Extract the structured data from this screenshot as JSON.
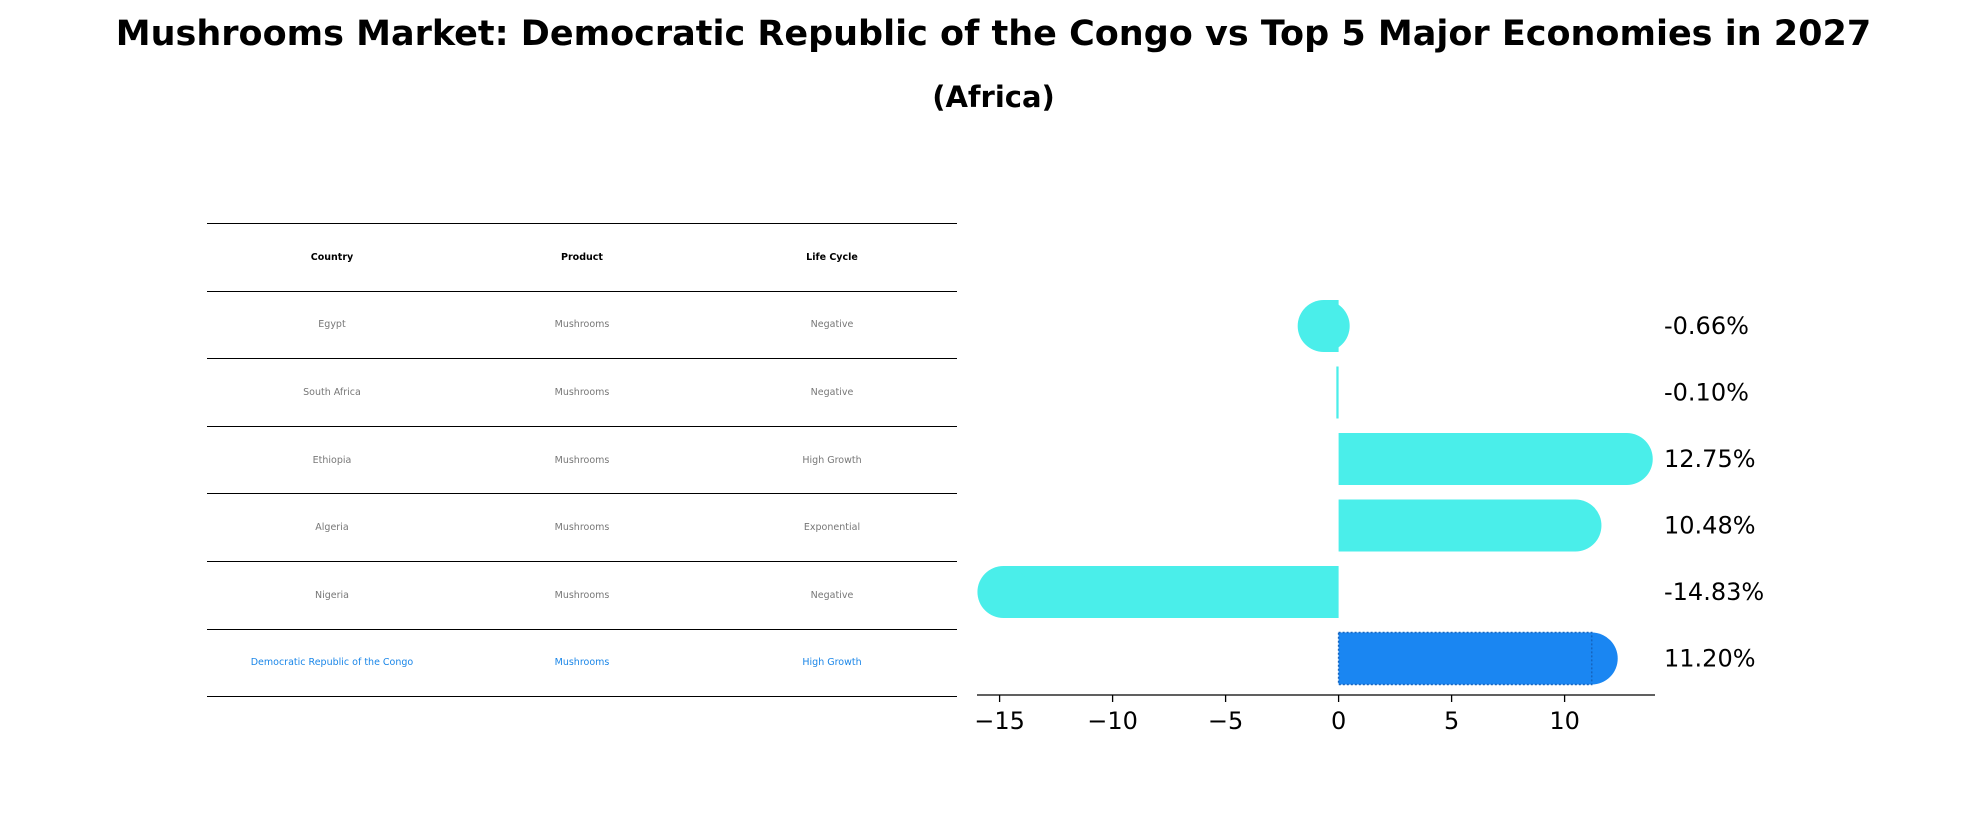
{
  "title": "Mushrooms Market: Democratic Republic of the Congo vs Top 5 Major Economies in 2027",
  "subtitle": "(Africa)",
  "table": {
    "headers": [
      "Country",
      "Product",
      "Life Cycle"
    ],
    "rows": [
      {
        "country": "Egypt",
        "product": "Mushrooms",
        "life_cycle": "Negative"
      },
      {
        "country": "South Africa",
        "product": "Mushrooms",
        "life_cycle": "Negative"
      },
      {
        "country": "Ethiopia",
        "product": "Mushrooms",
        "life_cycle": "High Growth"
      },
      {
        "country": "Algeria",
        "product": "Mushrooms",
        "life_cycle": "Exponential"
      },
      {
        "country": "Nigeria",
        "product": "Mushrooms",
        "life_cycle": "Negative"
      },
      {
        "country": "Democratic Republic of the Congo",
        "product": "Mushrooms",
        "life_cycle": "High Growth"
      }
    ]
  },
  "chart_data": {
    "type": "bar",
    "orientation": "horizontal",
    "title": "Mushrooms Market: Democratic Republic of the Congo vs Top 5 Major Economies in 2027",
    "subtitle": "(Africa)",
    "categories": [
      "Egypt",
      "South Africa",
      "Ethiopia",
      "Algeria",
      "Nigeria",
      "Democratic Republic of the Congo"
    ],
    "values": [
      -0.66,
      -0.1,
      12.75,
      10.48,
      -14.83,
      11.2
    ],
    "value_labels": [
      "-0.66%",
      "-0.10%",
      "12.75%",
      "10.48%",
      "-14.83%",
      "11.20%"
    ],
    "xlim": [
      -16,
      14
    ],
    "xticks": [
      -15,
      -10,
      -5,
      0,
      5,
      10
    ],
    "xtick_labels": [
      "−15",
      "−10",
      "−5",
      "0",
      "5",
      "10"
    ],
    "highlight": "Democratic Republic of the Congo",
    "colors": {
      "default": "#4aeeea",
      "highlight": "#1a86f2"
    }
  }
}
